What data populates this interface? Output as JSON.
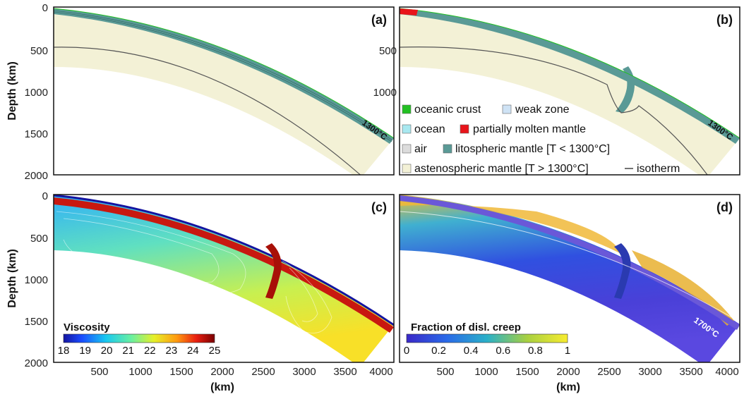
{
  "axes": {
    "ylabel": "Depth (km)",
    "xlabel": "(km)",
    "y_ticks": [
      "0",
      "500",
      "1000",
      "1500",
      "2000"
    ],
    "x_ticks": [
      "500",
      "1000",
      "1500",
      "2000",
      "2500",
      "3000",
      "3500",
      "4000"
    ]
  },
  "panels": [
    {
      "id": "a",
      "label": "(a)",
      "isotherm_label": "1300°C"
    },
    {
      "id": "b",
      "label": "(b)",
      "isotherm_label": "1300°C"
    },
    {
      "id": "c",
      "label": "(c)"
    },
    {
      "id": "d",
      "label": "(d)",
      "isotherm_label": "1700°C"
    }
  ],
  "legend": {
    "items": [
      {
        "label": "oceanic crust",
        "color": "#22c022"
      },
      {
        "label": "weak zone",
        "color": "#cfe3f5"
      },
      {
        "label": "ocean",
        "color": "#a8e8f0"
      },
      {
        "label": "partially molten mantle",
        "color": "#e8141a"
      },
      {
        "label": "air",
        "color": "#dcdcdc"
      },
      {
        "label": "litospheric mantle [T < 1300°C]",
        "color": "#5a9a96"
      },
      {
        "label": "astenospheric mantle [T > 1300°C]",
        "color": "#f3f1d6"
      },
      {
        "label": "isotherm",
        "color": "#444444"
      }
    ]
  },
  "colorbars": {
    "viscosity": {
      "title": "Viscosity",
      "ticks": [
        "18",
        "19",
        "20",
        "21",
        "22",
        "23",
        "24",
        "25"
      ]
    },
    "creep": {
      "title": "Fraction of disl. creep",
      "ticks": [
        "0",
        "0.2",
        "0.4",
        "0.6",
        "0.8",
        "1"
      ]
    }
  },
  "colors": {
    "asthenosphere": "#f3f1d6",
    "lithosphere": "#5a9a96",
    "crust": "#22c022",
    "molten": "#e8141a"
  }
}
